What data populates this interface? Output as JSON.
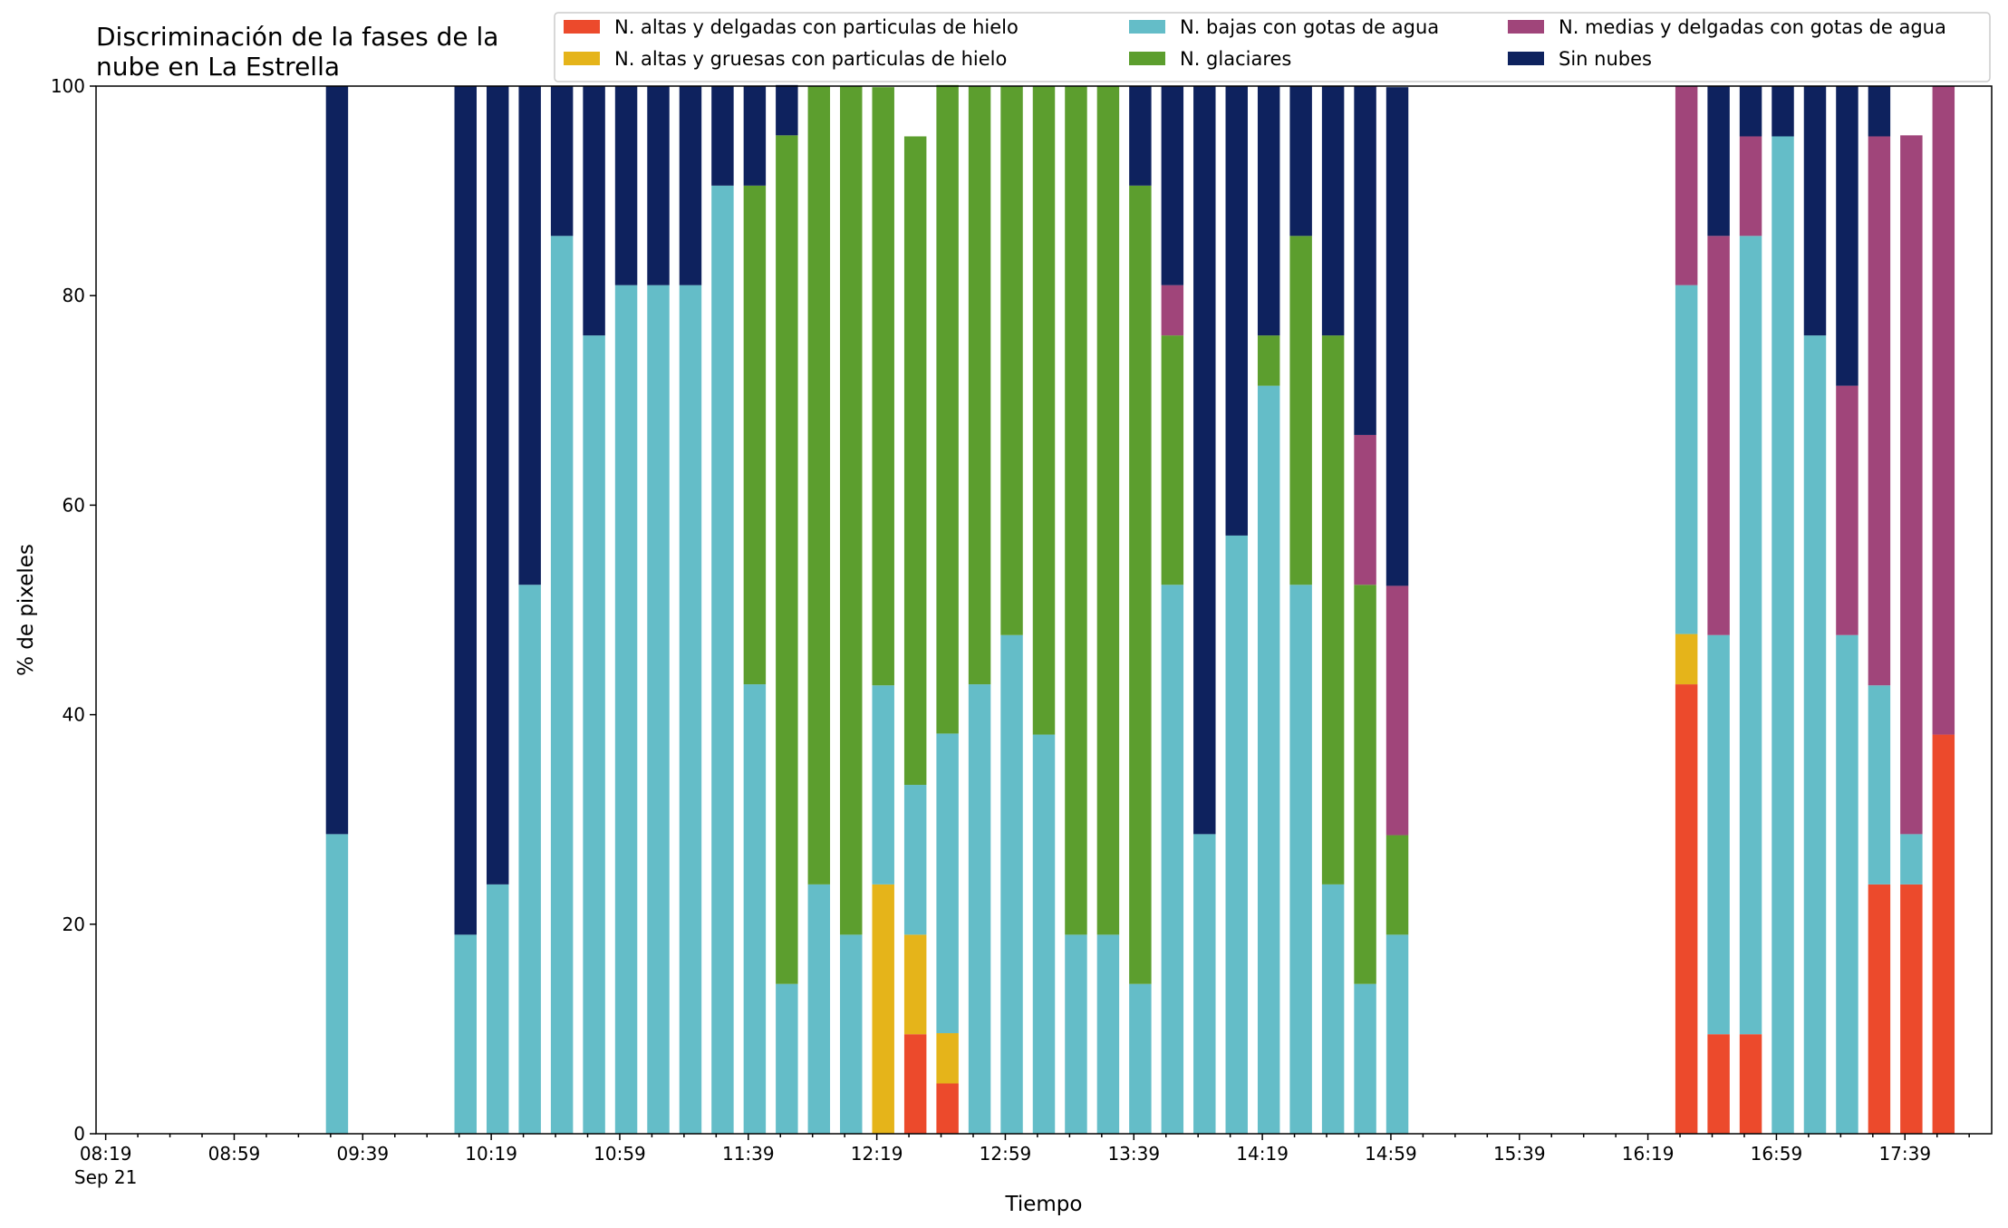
{
  "chart_data": {
    "type": "bar",
    "stacked": true,
    "title_lines": [
      "Discriminación de la fases de la",
      "nube en La Estrella"
    ],
    "xlabel": "Tiempo",
    "ylabel": "% de pixeles",
    "ylim": [
      0,
      100
    ],
    "yticks": [
      "0",
      "20",
      "40",
      "60",
      "80",
      "100"
    ],
    "xlim": [
      "08:16",
      "18:06"
    ],
    "x_tick_labels": [
      "08:19",
      "08:59",
      "09:39",
      "10:19",
      "10:59",
      "11:39",
      "12:19",
      "12:59",
      "13:39",
      "14:19",
      "14:59",
      "15:39",
      "16:19",
      "16:59",
      "17:39"
    ],
    "x_tick_sublabel": "Sep 21",
    "legend_position": "top-right",
    "grid": false,
    "x": [
      "09:31",
      "10:11",
      "10:21",
      "10:31",
      "10:41",
      "10:51",
      "11:01",
      "11:11",
      "11:21",
      "11:31",
      "11:41",
      "11:51",
      "12:01",
      "12:11",
      "12:21",
      "12:31",
      "12:41",
      "12:51",
      "13:01",
      "13:11",
      "13:21",
      "13:31",
      "13:41",
      "13:51",
      "14:01",
      "14:11",
      "14:21",
      "14:31",
      "14:41",
      "14:51",
      "15:01",
      "16:31",
      "16:41",
      "16:51",
      "17:01",
      "17:11",
      "17:21",
      "17:31",
      "17:41",
      "17:51",
      "18:01"
    ],
    "series": [
      {
        "name": "N. altas y delgadas con particulas de hielo",
        "color": "#ec4a2c",
        "values": [
          0,
          0,
          0,
          0,
          0,
          0,
          0,
          0,
          0,
          0,
          0,
          0,
          0,
          0,
          0,
          9.5,
          4.8,
          0,
          0,
          0,
          0,
          0,
          0,
          0,
          0,
          0,
          0,
          0,
          0,
          0,
          0,
          42.9,
          9.5,
          9.5,
          0,
          0,
          0,
          23.8,
          23.8,
          38.1,
          0
        ]
      },
      {
        "name": "N. altas y gruesas con particulas de hielo",
        "color": "#e5b41a",
        "values": [
          0,
          0,
          0,
          0,
          0,
          0,
          0,
          0,
          0,
          0,
          0,
          0,
          0,
          0,
          23.8,
          9.5,
          4.8,
          0,
          0,
          0,
          0,
          0,
          0,
          0,
          0,
          0,
          0,
          0,
          0,
          0,
          0,
          4.8,
          0,
          0,
          0,
          0,
          0,
          0,
          0,
          0,
          0
        ]
      },
      {
        "name": "N. bajas con gotas de agua",
        "color": "#64bdc8",
        "values": [
          28.6,
          19,
          23.8,
          52.4,
          85.7,
          76.2,
          81,
          81,
          81,
          90.5,
          42.9,
          14.3,
          23.8,
          19,
          19,
          14.3,
          28.6,
          42.9,
          47.6,
          38.1,
          19,
          19,
          14.3,
          52.4,
          28.6,
          57.1,
          71.4,
          52.4,
          23.8,
          14.3,
          19,
          33.3,
          38.1,
          76.2,
          95.2,
          76.2,
          47.6,
          19,
          4.8,
          0,
          0
        ]
      },
      {
        "name": "N. glaciares",
        "color": "#5c9e2e",
        "values": [
          0,
          0,
          0,
          0,
          0,
          0,
          0,
          0,
          0,
          0,
          47.6,
          81,
          76.2,
          81,
          57.1,
          61.9,
          61.9,
          57.1,
          52.4,
          61.9,
          81,
          81,
          76.2,
          23.8,
          0,
          0,
          4.8,
          33.3,
          52.4,
          38.1,
          9.5,
          0,
          0,
          0,
          0,
          0,
          0,
          0,
          0,
          0,
          0
        ]
      },
      {
        "name": "N. medias y delgadas con gotas de agua",
        "color": "#a0457a",
        "values": [
          0,
          0,
          0,
          0,
          0,
          0,
          0,
          0,
          0,
          0,
          0,
          0,
          0,
          0,
          0,
          0,
          0,
          0,
          0,
          0,
          0,
          0,
          0,
          4.8,
          0,
          0,
          0,
          0,
          0,
          14.3,
          23.8,
          19,
          38.1,
          9.5,
          0,
          0,
          23.8,
          52.4,
          66.7,
          61.9,
          0
        ]
      },
      {
        "name": "Sin nubes",
        "color": "#0e225e",
        "values": [
          71.4,
          81,
          76.2,
          47.6,
          14.3,
          23.8,
          19,
          19,
          19,
          9.5,
          9.5,
          4.8,
          0,
          0,
          0,
          0,
          0,
          0,
          0,
          0,
          0,
          0,
          9.5,
          19,
          71.4,
          42.9,
          23.8,
          14.3,
          23.8,
          33.3,
          47.6,
          0,
          14.3,
          4.8,
          4.8,
          23.8,
          28.6,
          4.8,
          0,
          0,
          0
        ]
      }
    ]
  }
}
